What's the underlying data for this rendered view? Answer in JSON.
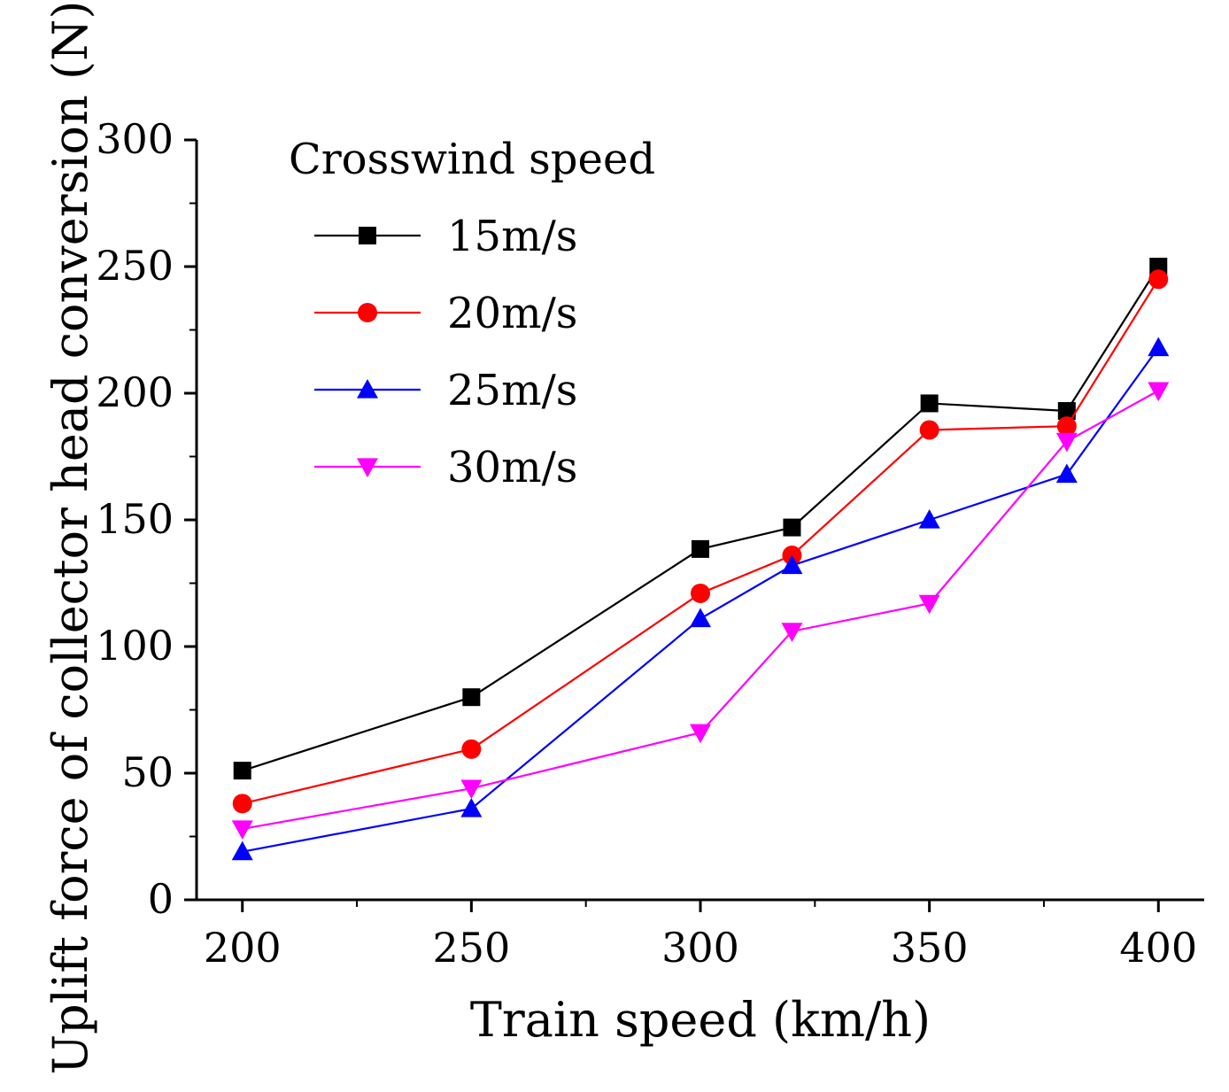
{
  "chart_data": {
    "type": "line",
    "title": "",
    "xlabel": "Train speed (km/h)",
    "ylabel": "Uplift force of collector head conversion (N)",
    "x": [
      200,
      250,
      300,
      320,
      350,
      380,
      400
    ],
    "xticks": [
      200,
      250,
      300,
      350,
      400
    ],
    "xlim": [
      190,
      410
    ],
    "yticks": [
      0,
      50,
      100,
      150,
      200,
      250,
      300
    ],
    "ylim": [
      0,
      300
    ],
    "grid": false,
    "legend": {
      "title": "Crosswind speed",
      "placement": "top-left"
    },
    "series": [
      {
        "name": "15m/s",
        "color": "#000000",
        "marker": "square",
        "values": [
          51,
          80,
          138.5,
          147,
          196,
          193,
          250
        ]
      },
      {
        "name": "20m/s",
        "color": "#ff0000",
        "marker": "circle",
        "values": [
          38,
          59.5,
          121,
          136,
          185.5,
          187,
          245
        ]
      },
      {
        "name": "25m/s",
        "color": "#0000ff",
        "marker": "triangle-up",
        "values": [
          19,
          36,
          111,
          132,
          150,
          168,
          218
        ]
      },
      {
        "name": "30m/s",
        "color": "#ff00ff",
        "marker": "triangle-down",
        "values": [
          28,
          44,
          66,
          106,
          117,
          181,
          201
        ]
      }
    ]
  }
}
